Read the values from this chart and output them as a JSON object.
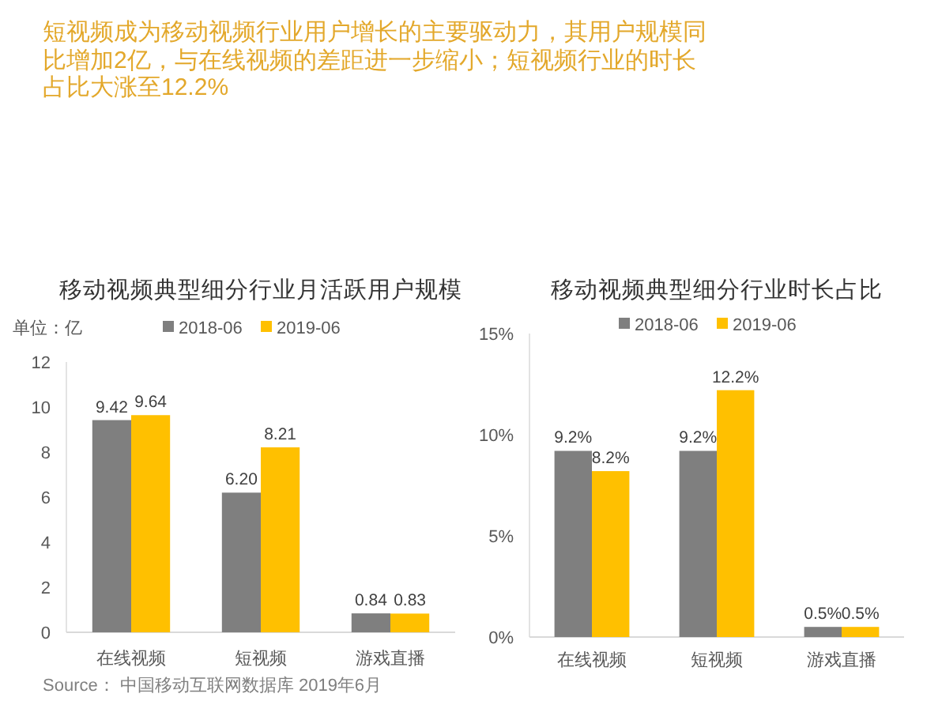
{
  "chart_data": [
    {
      "type": "other",
      "title": "短视频成为移动视频行业用户增长的主要驱动力，其用户规模同比增加2亿，与在线视频的差距进一步缩小；短视频行业的时长占比大涨至12.2%",
      "annotations": [
        "Source： 中国移动互联网数据库 2019年6月"
      ]
    },
    {
      "type": "bar",
      "title": "移动视频典型细分行业月活跃用户规模",
      "ylabel": "单位：亿",
      "categories": [
        "在线视频",
        "短视频",
        "游戏直播"
      ],
      "series": [
        {
          "name": "2018-06",
          "color": "#7f7f7f",
          "values": [
            9.42,
            6.2,
            0.84
          ],
          "value_labels": [
            "9.42",
            "6.20",
            "0.84"
          ]
        },
        {
          "name": "2019-06",
          "color": "#ffc000",
          "values": [
            9.64,
            8.21,
            0.83
          ],
          "value_labels": [
            "9.64",
            "8.21",
            "0.83"
          ]
        }
      ],
      "ylim": [
        0,
        12
      ],
      "yticks": [
        0,
        2,
        4,
        6,
        8,
        10,
        12
      ],
      "legend": "top"
    },
    {
      "type": "bar",
      "title": "移动视频典型细分行业时长占比",
      "categories": [
        "在线视频",
        "短视频",
        "游戏直播"
      ],
      "series": [
        {
          "name": "2018-06",
          "color": "#7f7f7f",
          "values": [
            9.2,
            9.2,
            0.5
          ],
          "value_labels": [
            "9.2%",
            "9.2%",
            "0.5%"
          ]
        },
        {
          "name": "2019-06",
          "color": "#ffc000",
          "values": [
            8.2,
            12.2,
            0.5
          ],
          "value_labels": [
            "8.2%",
            "12.2%",
            "0.5%"
          ]
        }
      ],
      "ylim": [
        0,
        15
      ],
      "yticks": [
        {
          "value": 0,
          "label": "0%"
        },
        {
          "value": 5,
          "label": "5%"
        },
        {
          "value": 10,
          "label": "10%"
        },
        {
          "value": 15,
          "label": "15%"
        }
      ],
      "legend": "top"
    }
  ]
}
